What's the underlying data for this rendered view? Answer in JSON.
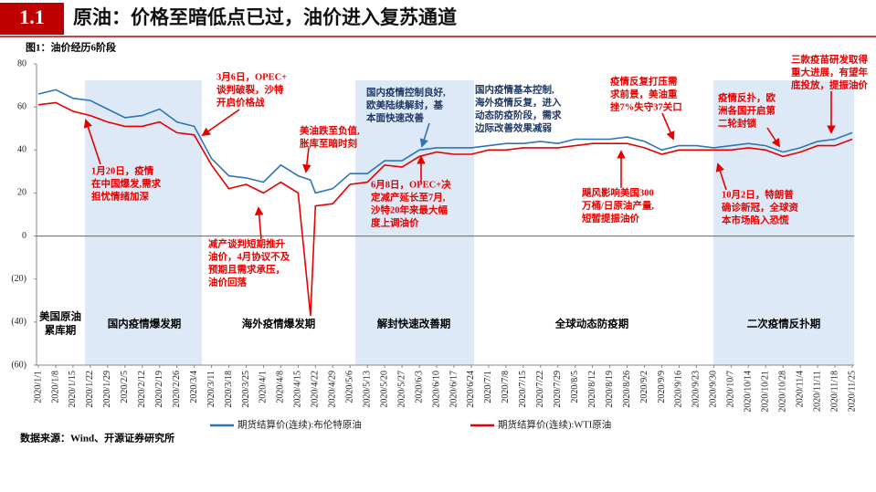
{
  "header": {
    "number": "1.1",
    "title": "原油：价格至暗低点已过，油价进入复苏通道"
  },
  "chart_data": {
    "type": "line",
    "title": "图1：油价经历6阶段",
    "x": [
      "2020/1/1",
      "2020/1/8",
      "2020/1/15",
      "2020/1/22",
      "2020/1/29",
      "2020/2/5",
      "2020/2/12",
      "2020/2/19",
      "2020/2/26",
      "2020/3/4",
      "2020/3/11",
      "2020/3/18",
      "2020/3/25",
      "2020/4/1",
      "2020/4/8",
      "2020/4/15",
      "2020/4/20",
      "2020/4/22",
      "2020/4/29",
      "2020/5/6",
      "2020/5/13",
      "2020/5/20",
      "2020/5/27",
      "2020/6/3",
      "2020/6/10",
      "2020/6/17",
      "2020/6/24",
      "2020/7/1",
      "2020/7/8",
      "2020/7/15",
      "2020/7/22",
      "2020/7/29",
      "2020/8/5",
      "2020/8/12",
      "2020/8/19",
      "2020/8/26",
      "2020/9/2",
      "2020/9/9",
      "2020/9/16",
      "2020/9/23",
      "2020/9/30",
      "2020/10/7",
      "2020/10/14",
      "2020/10/21",
      "2020/10/28",
      "2020/11/4",
      "2020/11/11",
      "2020/11/18",
      "2020/11/25"
    ],
    "series": [
      {
        "name": "期货结算价(连续):布伦特原油",
        "color": "#2e75b6",
        "values": [
          66,
          68,
          64,
          63,
          59,
          55,
          56,
          59,
          53,
          51,
          36,
          28,
          27,
          25,
          33,
          28,
          26,
          20,
          22,
          29,
          29,
          35,
          35,
          40,
          41,
          41,
          41,
          42,
          43,
          43,
          44,
          43,
          45,
          45,
          45,
          46,
          44,
          40,
          42,
          42,
          41,
          42,
          43,
          42,
          39,
          41,
          44,
          45,
          48
        ]
      },
      {
        "name": "期货结算价(连续):WTI原油",
        "color": "#e60000",
        "values": [
          61,
          62,
          58,
          56,
          53,
          51,
          51,
          53,
          48,
          47,
          33,
          22,
          24,
          20,
          25,
          20,
          -37,
          14,
          15,
          24,
          25,
          33,
          32,
          37,
          39,
          38,
          38,
          40,
          40,
          41,
          41,
          41,
          42,
          43,
          43,
          43,
          41,
          38,
          40,
          40,
          40,
          40,
          41,
          40,
          37,
          39,
          42,
          42,
          45
        ]
      }
    ],
    "ylim": [
      -60,
      80
    ],
    "yticks": [
      {
        "value": -60,
        "label": "(60)"
      },
      {
        "value": -40,
        "label": "(40)"
      },
      {
        "value": -20,
        "label": "(20)"
      },
      0,
      20,
      40,
      60,
      80
    ],
    "xticks": [
      "2020/1/1",
      "2020/1/8",
      "2020/1/15",
      "2020/1/22",
      "2020/1/29",
      "2020/2/5",
      "2020/2/12",
      "2020/2/19",
      "2020/2/26",
      "2020/3/4",
      "2020/3/11",
      "2020/3/18",
      "2020/3/25",
      "2020/4/1",
      "2020/4/8",
      "2020/4/15",
      "2020/4/22",
      "2020/4/29",
      "2020/5/6",
      "2020/5/13",
      "2020/5/20",
      "2020/5/27",
      "2020/6/3",
      "2020/6/10",
      "2020/6/17",
      "2020/6/24",
      "2020/7/1",
      "2020/7/8",
      "2020/7/15",
      "2020/7/22",
      "2020/7/29",
      "2020/8/5",
      "2020/8/12",
      "2020/8/19",
      "2020/8/26",
      "2020/9/2",
      "2020/9/9",
      "2020/9/16",
      "2020/9/23",
      "2020/9/30",
      "2020/10/7",
      "2020/10/14",
      "2020/10/21",
      "2020/10/28",
      "2020/11/4",
      "2020/11/11",
      "2020/11/18",
      "2020/11/25"
    ],
    "phases": [
      [
        "美国原油",
        "累库期"
      ],
      [
        "国内疫情爆发期"
      ],
      [
        "海外疫情爆发期"
      ],
      [
        "解封快速改善期"
      ],
      [
        "全球动态防疫期"
      ],
      [
        "二次疫情反扑期"
      ]
    ],
    "annotations": [
      {
        "color": "#e60000",
        "lines": [
          "3月6日，OPEC+",
          "谈判破裂，沙特",
          "开启价格战"
        ]
      },
      {
        "color": "#e60000",
        "lines": [
          "1月20日，疫情",
          "在中国爆发,需求",
          "担忧情绪加深"
        ]
      },
      {
        "color": "#e60000",
        "lines": [
          "美油跌至负值,",
          "胀库至暗时刻"
        ]
      },
      {
        "color": "#e60000",
        "lines": [
          "减产谈判短期推升",
          "油价，4月协议不及",
          "预期且需求承压，",
          "油价回落"
        ]
      },
      {
        "color": "#1f3864",
        "lines": [
          "国内疫情控制良好,",
          "欧美陆续解封，基",
          "本面快速改善"
        ]
      },
      {
        "color": "#1f3864",
        "lines": [
          "国内疫情基本控制,",
          "海外疫情反复，进入",
          "动态防疫阶段，需求",
          "边际改善效果减弱"
        ]
      },
      {
        "color": "#e60000",
        "lines": [
          "6月8日，OPEC+决",
          "定减产延长至7月,",
          "沙特20年来最大幅",
          "度上调油价"
        ]
      },
      {
        "color": "#e60000",
        "lines": [
          "疫情反复打压需",
          "求前景，美油重",
          "挫7%失守37关口"
        ]
      },
      {
        "color": "#e60000",
        "lines": [
          "飓风影响美国300",
          "万桶/日原油产量,",
          "短暂提振油价"
        ]
      },
      {
        "color": "#e60000",
        "lines": [
          "疫情反扑，欧",
          "洲各国开启第",
          "二轮封锁"
        ]
      },
      {
        "color": "#e60000",
        "lines": [
          "10月2日，特朗普",
          "确诊新冠，全球资",
          "本市场陷入恐慌"
        ]
      },
      {
        "color": "#e60000",
        "lines": [
          "三款疫苗研发取得",
          "重大进展，有望年",
          "底投放，提振油价"
        ]
      }
    ]
  },
  "source": "数据来源：Wind、开源证券研究所"
}
